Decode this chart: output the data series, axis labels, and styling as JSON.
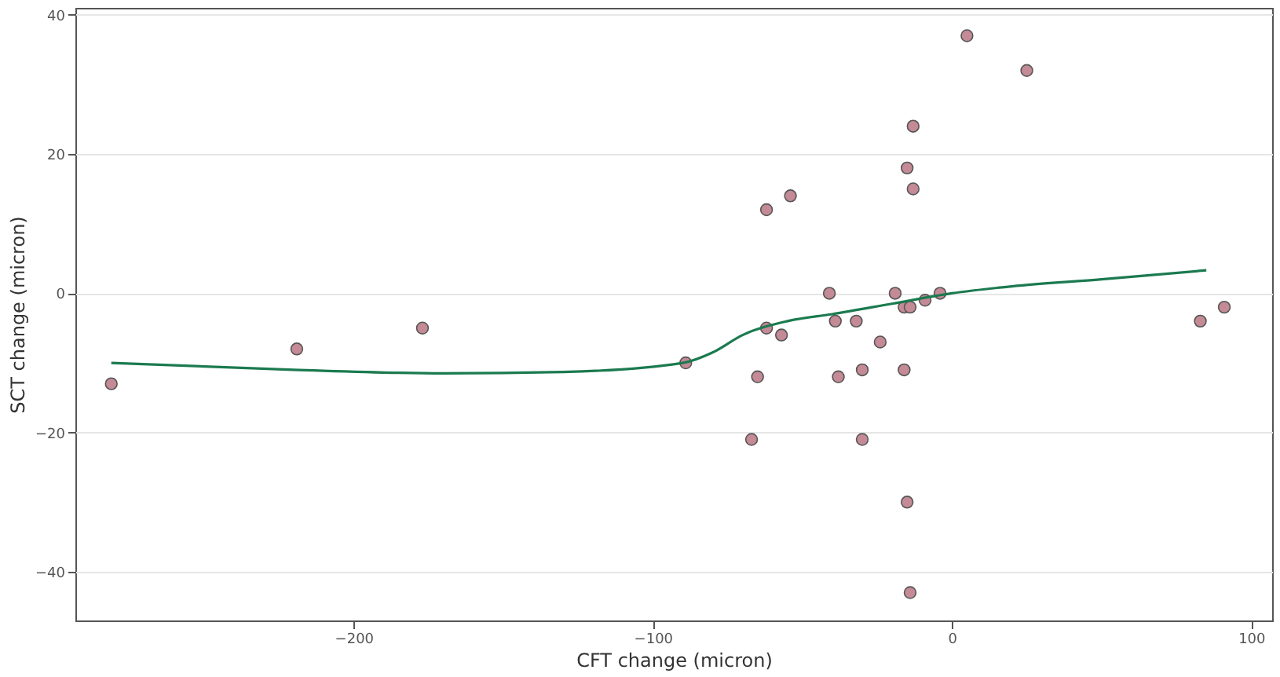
{
  "chart_data": {
    "type": "scatter",
    "xlabel": "CFT change (micron)",
    "ylabel": "SCT change (micron)",
    "xlim": [
      -293,
      107
    ],
    "ylim": [
      -47,
      41
    ],
    "xticks": [
      -200,
      -100,
      0,
      100
    ],
    "yticks": [
      -40,
      -20,
      0,
      20,
      40
    ],
    "grid": "y",
    "series": [
      {
        "color": "#c48a96",
        "marker": "circle",
        "x": [
          -281,
          -219,
          -177,
          -89,
          -65,
          -67,
          -62,
          -54,
          -62,
          -57,
          -41,
          -39,
          -38,
          -32,
          -30,
          -30,
          -24,
          -19,
          -16,
          -16,
          -15,
          -14,
          -15,
          -13,
          -13,
          -14,
          -9,
          -4,
          5,
          25,
          83,
          91
        ],
        "values": [
          -13,
          -8,
          -5,
          -10,
          -12,
          -21,
          12,
          14,
          -5,
          -6,
          0,
          -4,
          -12,
          -4,
          -11,
          -21,
          -7,
          0,
          -2,
          -11,
          -30,
          -43,
          18,
          24,
          15,
          -2,
          -1,
          0,
          37,
          32,
          -4,
          -2
        ]
      },
      {
        "type": "line",
        "color": "#1b7a4f",
        "line_style": "solid",
        "marker": "none",
        "x": [
          -281,
          -220,
          -170,
          -130,
          -90,
          -80,
          -70,
          -55,
          -40,
          -20,
          0,
          20,
          50,
          85
        ],
        "values": [
          -10,
          -11,
          -11.5,
          -11.3,
          -10,
          -8.5,
          -6,
          -4,
          -3,
          -1.5,
          0,
          1,
          2,
          3.3
        ]
      }
    ]
  }
}
